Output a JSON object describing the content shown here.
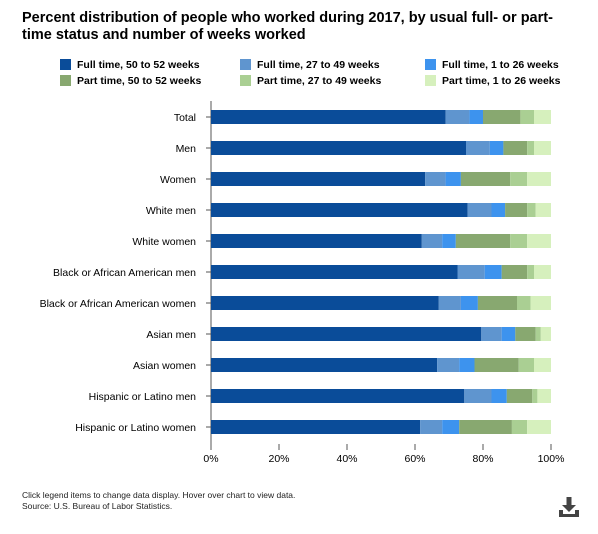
{
  "title": "Percent distribution of people who worked during 2017, by usual full- or part-time status and number of weeks worked",
  "footer": {
    "note": "Click legend items to change data display. Hover over chart to view data.",
    "source": "Source: U.S. Bureau of Labor Statistics."
  },
  "download_icon": "download-icon",
  "colors": {
    "ft_50_52": "#0a4c99",
    "ft_27_49": "#5f95cf",
    "ft_1_26": "#3d93ee",
    "pt_50_52": "#88a870",
    "pt_27_49": "#aacf93",
    "pt_1_26": "#d6f0bd",
    "axis": "#555555",
    "grid": "#cccccc"
  },
  "chart_data": {
    "type": "bar",
    "orientation": "horizontal",
    "stacked": true,
    "categories": [
      "Total",
      "Men",
      "Women",
      "White men",
      "White women",
      "Black or African American men",
      "Black or African American women",
      "Asian men",
      "Asian women",
      "Hispanic or Latino men",
      "Hispanic or Latino women"
    ],
    "series": [
      {
        "name": "Full time, 50 to 52 weeks",
        "color_key": "ft_50_52",
        "values": [
          69,
          75,
          63,
          75.5,
          62,
          72.5,
          67,
          79.5,
          66.5,
          74.5,
          61.5
        ]
      },
      {
        "name": "Full time, 27 to 49 weeks",
        "color_key": "ft_27_49",
        "values": [
          7,
          7,
          6,
          7,
          6,
          8,
          6.5,
          6,
          6.5,
          8,
          6.5
        ]
      },
      {
        "name": "Full time, 1 to 26 weeks",
        "color_key": "ft_1_26",
        "values": [
          4,
          4,
          4.5,
          4,
          4,
          5,
          5,
          4,
          4.5,
          4.5,
          5
        ]
      },
      {
        "name": "Part time, 50 to 52 weeks",
        "color_key": "pt_50_52",
        "values": [
          11,
          7,
          14.5,
          6.5,
          16,
          7.5,
          11.5,
          6,
          13,
          7.5,
          15.5
        ]
      },
      {
        "name": "Part time, 27 to 49 weeks",
        "color_key": "pt_27_49",
        "values": [
          4,
          2,
          5,
          2.5,
          5,
          2,
          4,
          1.5,
          4.5,
          1.5,
          4.5
        ]
      },
      {
        "name": "Part time, 1 to 26 weeks",
        "color_key": "pt_1_26",
        "values": [
          5,
          5,
          7,
          4.5,
          7,
          5,
          6,
          3,
          5,
          4,
          7
        ]
      }
    ],
    "xlim": [
      0,
      100
    ],
    "x_ticks": [
      "0%",
      "20%",
      "40%",
      "60%",
      "80%",
      "100%"
    ],
    "grid": false,
    "legend_position": "top"
  }
}
